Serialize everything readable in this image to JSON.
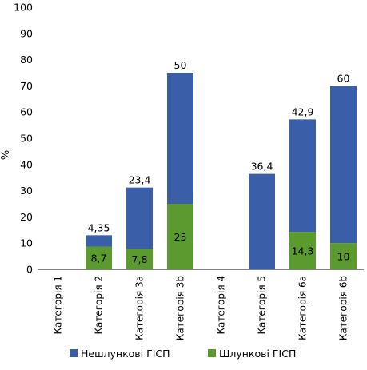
{
  "chart_data": {
    "type": "bar",
    "stacked": true,
    "ylabel": "%",
    "ylim": [
      0,
      100
    ],
    "yticks": [
      0,
      10,
      20,
      30,
      40,
      50,
      60,
      70,
      80,
      90,
      100
    ],
    "categories": [
      "Категорія 1",
      "Категорія 2",
      "Категорія 3a",
      "Категорія 3b",
      "Категорія 4",
      "Категорія 5",
      "Категорія 6a",
      "Категорія 6b"
    ],
    "series": [
      {
        "name": "Шлункові ГІСП",
        "color": "#5a9a2e",
        "values": [
          0,
          8.7,
          7.8,
          25,
          0,
          0,
          14.3,
          10
        ],
        "labels": [
          "",
          "8,7",
          "7,8",
          "25",
          "",
          "",
          "14,3",
          "10"
        ]
      },
      {
        "name": "Нешлункові ГІСП",
        "color": "#3b5ea8",
        "values": [
          0,
          4.35,
          23.4,
          50,
          0,
          36.4,
          42.9,
          60
        ],
        "labels": [
          "",
          "4,35",
          "23,4",
          "50",
          "",
          "36,4",
          "42,9",
          "60"
        ]
      }
    ],
    "legend": {
      "position": "bottom",
      "order": [
        "Нешлункові ГІСП",
        "Шлункові ГІСП"
      ]
    },
    "grid": false
  }
}
